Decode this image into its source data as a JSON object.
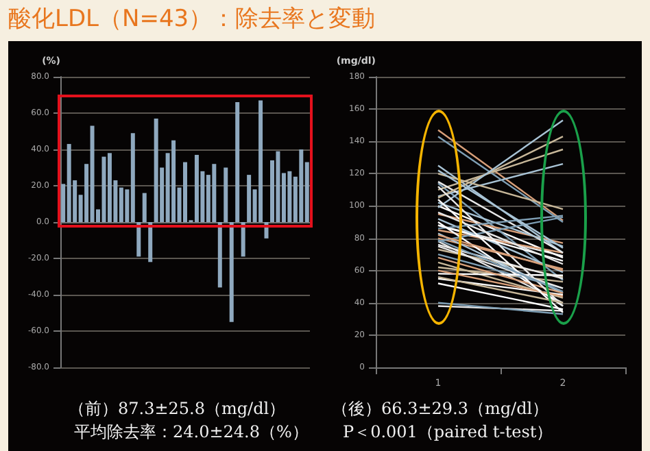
{
  "chart_data": [
    {
      "type": "bar",
      "title": "酸化LDL（N=43）：除去率と変動",
      "ylabel": "(%)",
      "categories": [
        null,
        null,
        null,
        null,
        null,
        null,
        null,
        null,
        null,
        null,
        null,
        null,
        null,
        null,
        null,
        null,
        null,
        null,
        null,
        null,
        null,
        null,
        null,
        null,
        null,
        null,
        null,
        null,
        null,
        null,
        null,
        null,
        null,
        null,
        null,
        null,
        null,
        null,
        null,
        null,
        null,
        null,
        null
      ],
      "values": [
        21,
        43,
        23,
        15,
        32,
        53,
        7,
        36,
        38,
        23,
        19,
        18,
        49,
        -19,
        16,
        -22,
        57,
        30,
        38,
        45,
        19,
        33,
        1,
        37,
        28,
        26,
        32,
        -36,
        30,
        -55,
        66,
        -19,
        26,
        18,
        67,
        -9,
        34,
        39,
        27,
        28,
        25,
        40,
        33
      ],
      "color": "#8fa9bf",
      "ylim": [
        -80,
        80
      ],
      "yticks": [
        {
          "value": -80,
          "label": "-80.0"
        },
        {
          "value": -60,
          "label": "-60.0"
        },
        {
          "value": -40,
          "label": "-40.0"
        },
        {
          "value": -20,
          "label": "-20.0"
        },
        {
          "value": 0,
          "label": "0.0"
        },
        {
          "value": 20,
          "label": "20.0"
        },
        {
          "value": 40,
          "label": "40.0"
        },
        {
          "value": 60,
          "label": "60.0"
        },
        {
          "value": 80,
          "label": "80.0"
        }
      ],
      "grid": "y",
      "tick_labels": "y",
      "annotations": [
        "平均除去率：24.0±24.8（%）"
      ]
    },
    {
      "type": "line",
      "ylabel": "(mg/dl)",
      "categories": [
        "1",
        "2"
      ],
      "ylim": [
        0,
        180
      ],
      "yticks": [
        0,
        20,
        40,
        60,
        80,
        100,
        120,
        140,
        160,
        180
      ],
      "grid": "y",
      "annotations": [
        "（前）87.3±25.8（mg/dl）",
        "（後）66.3±29.3（mg/dl）",
        "P＜0.001（paired t-test）"
      ],
      "series": [
        {
          "color": "#e8e8e8",
          "values": [
            88,
            69
          ]
        },
        {
          "color": "#a9c4d6",
          "values": [
            125,
            71
          ]
        },
        {
          "color": "#d9a07a",
          "values": [
            80,
            61
          ]
        },
        {
          "color": "#c8b89a",
          "values": [
            62,
            53
          ]
        },
        {
          "color": "#ffffff",
          "values": [
            100,
            68
          ]
        },
        {
          "color": "#7f9fb5",
          "values": [
            114,
            54
          ]
        },
        {
          "color": "#e8e8e8",
          "values": [
            38,
            35
          ]
        },
        {
          "color": "#a9c4d6",
          "values": [
            92,
            59
          ]
        },
        {
          "color": "#d9a07a",
          "values": [
            147,
            91
          ]
        },
        {
          "color": "#c8b89a",
          "values": [
            73,
            56
          ]
        },
        {
          "color": "#ffffff",
          "values": [
            55,
            45
          ]
        },
        {
          "color": "#7f9fb5",
          "values": [
            40,
            33
          ]
        },
        {
          "color": "#e8e8e8",
          "values": [
            78,
            40
          ]
        },
        {
          "color": "#a9c4d6",
          "values": [
            106,
            126
          ]
        },
        {
          "color": "#d9a07a",
          "values": [
            85,
            71
          ]
        },
        {
          "color": "#c8b89a",
          "values": [
            110,
            135
          ]
        },
        {
          "color": "#ffffff",
          "values": [
            90,
            38
          ]
        },
        {
          "color": "#7f9fb5",
          "values": [
            70,
            49
          ]
        },
        {
          "color": "#e8e8e8",
          "values": [
            115,
            71
          ]
        },
        {
          "color": "#a9c4d6",
          "values": [
            83,
            46
          ]
        },
        {
          "color": "#d9a07a",
          "values": [
            95,
            77
          ]
        },
        {
          "color": "#c8b89a",
          "values": [
            65,
            43
          ]
        },
        {
          "color": "#ffffff",
          "values": [
            58,
            57
          ]
        },
        {
          "color": "#7f9fb5",
          "values": [
            143,
            90
          ]
        },
        {
          "color": "#e8e8e8",
          "values": [
            76,
            55
          ]
        },
        {
          "color": "#a9c4d6",
          "values": [
            102,
            75
          ]
        },
        {
          "color": "#d9a07a",
          "values": [
            68,
            46
          ]
        },
        {
          "color": "#c8b89a",
          "values": [
            105,
            143
          ]
        },
        {
          "color": "#ffffff",
          "values": [
            52,
            36
          ]
        },
        {
          "color": "#a9c4d6",
          "values": [
            99,
            153
          ]
        },
        {
          "color": "#e8e8e8",
          "values": [
            112,
            38
          ]
        },
        {
          "color": "#7f9fb5",
          "values": [
            78,
            93
          ]
        },
        {
          "color": "#d9a07a",
          "values": [
            60,
            44
          ]
        },
        {
          "color": "#c8b89a",
          "values": [
            120,
            98
          ]
        },
        {
          "color": "#ffffff",
          "values": [
            104,
            34
          ]
        },
        {
          "color": "#7f9fb5",
          "values": [
            86,
            94
          ]
        },
        {
          "color": "#e8e8e8",
          "values": [
            75,
            49
          ]
        },
        {
          "color": "#a9c4d6",
          "values": [
            122,
            74
          ]
        },
        {
          "color": "#d9a07a",
          "values": [
            82,
            60
          ]
        },
        {
          "color": "#c8b89a",
          "values": [
            56,
            40
          ]
        },
        {
          "color": "#ffffff",
          "values": [
            88,
            66
          ]
        },
        {
          "color": "#7f9fb5",
          "values": [
            79,
            47
          ]
        },
        {
          "color": "#e8e8e8",
          "values": [
            96,
            64
          ]
        }
      ]
    }
  ]
}
